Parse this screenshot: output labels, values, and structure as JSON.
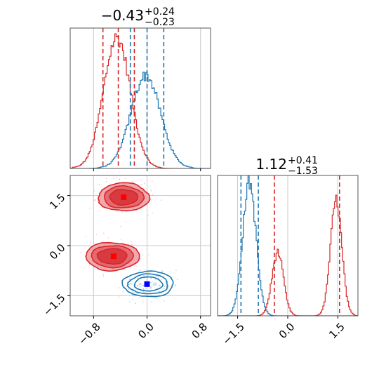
{
  "chart_data": [
    {
      "type": "histogram",
      "panel": "top-left marginal",
      "title": {
        "value": "−0.43",
        "plus": "+0.24",
        "minus": "−0.23"
      },
      "xlim": [
        -1.15,
        0.95
      ],
      "grid": true,
      "series": [
        {
          "color": "#d62728",
          "peak": -0.45,
          "sigma": 0.2,
          "height": 0.93,
          "dashed_lines": [
            -0.66,
            -0.43,
            -0.19
          ]
        },
        {
          "color": "#1f77b4",
          "peak": -0.02,
          "sigma": 0.22,
          "height": 0.66,
          "dashed_lines": [
            -0.25,
            0.0,
            0.25
          ]
        }
      ]
    },
    {
      "type": "histogram",
      "panel": "bottom-right marginal",
      "title": {
        "value": "1.12",
        "plus": "+0.41",
        "minus": "−1.53"
      },
      "xlim": [
        -2.1,
        2.1
      ],
      "xticks": [
        "−1.5",
        "0.0",
        "1.5"
      ],
      "xtick_values": [
        -1.5,
        0.0,
        1.5
      ],
      "grid": true,
      "series": [
        {
          "color": "#1f77b4",
          "components": [
            {
              "peak": -1.15,
              "sigma": 0.2,
              "height": 0.95
            }
          ],
          "dashed_lines": [
            -1.4,
            -0.88
          ]
        },
        {
          "color": "#d62728",
          "components": [
            {
              "peak": -0.3,
              "sigma": 0.17,
              "height": 0.45
            },
            {
              "peak": 1.45,
              "sigma": 0.17,
              "height": 0.82
            }
          ],
          "dashed_lines": [
            -0.4,
            1.55
          ]
        }
      ]
    },
    {
      "type": "scatter-contour",
      "panel": "bottom-left joint",
      "xlim": [
        -1.15,
        0.95
      ],
      "ylim": [
        -2.1,
        2.1
      ],
      "xticks": [
        "−0.8",
        "0.0",
        "0.8"
      ],
      "xtick_values": [
        -0.8,
        0.0,
        0.8
      ],
      "yticks": [
        "−1.5",
        "0.0",
        "1.5"
      ],
      "ytick_values": [
        -1.5,
        0.0,
        1.5
      ],
      "grid": true,
      "clusters": [
        {
          "color": "#d62728",
          "filled": true,
          "center": [
            -0.35,
            1.45
          ],
          "spread": [
            0.38,
            0.42
          ],
          "marker": "square",
          "marker_color": "#ff0000",
          "marker_xy": [
            -0.35,
            1.45
          ]
        },
        {
          "color": "#d62728",
          "filled": true,
          "center": [
            -0.52,
            -0.32
          ],
          "spread": [
            0.4,
            0.42
          ],
          "marker": "square",
          "marker_color": "#ff0000",
          "marker_xy": [
            -0.5,
            -0.32
          ]
        },
        {
          "color": "#1f77b4",
          "filled": false,
          "center": [
            0.02,
            -1.15
          ],
          "spread": [
            0.38,
            0.38
          ],
          "marker": "square",
          "marker_color": "#0000ff",
          "marker_xy": [
            0.0,
            -1.15
          ]
        }
      ]
    }
  ]
}
